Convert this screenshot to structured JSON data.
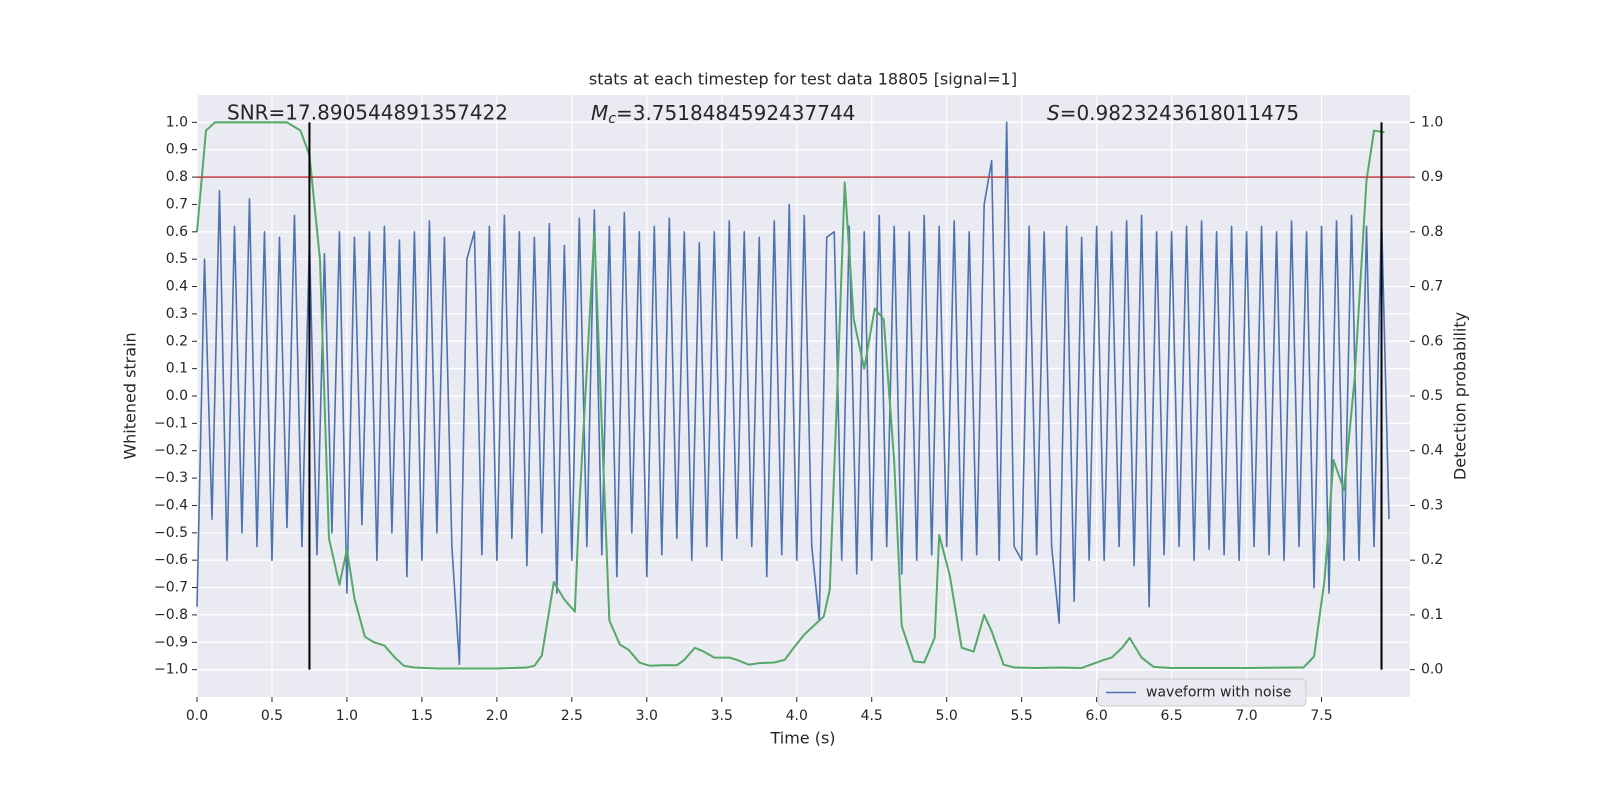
{
  "chart_data": {
    "type": "line",
    "title": "stats at each timestep for test data 18805 [signal=1]",
    "xlabel": "Time (s)",
    "ylabel": "Whitened strain",
    "y2label": "Detection probability",
    "annotations": [
      {
        "text": "SNR=17.890544891357422"
      },
      {
        "symbol": "M",
        "subscript": "c",
        "text": "=3.7518484592437744"
      },
      {
        "symbol": "S",
        "text": "=0.9823243618011475"
      }
    ],
    "xlim": [
      0,
      8.09
    ],
    "ylim": [
      -1.1,
      1.1
    ],
    "y2lim": [
      -0.05,
      1.05
    ],
    "xticks": [
      {
        "value": 0,
        "label": "0.0"
      },
      0.5,
      {
        "value": 1,
        "label": "1.0"
      },
      1.5,
      {
        "value": 2,
        "label": "2.0"
      },
      2.5,
      {
        "value": 3,
        "label": "3.0"
      },
      3.5,
      {
        "value": 4,
        "label": "4.0"
      },
      4.5,
      {
        "value": 5,
        "label": "5.0"
      },
      5.5,
      {
        "value": 6,
        "label": "6.0"
      },
      6.5,
      {
        "value": 7,
        "label": "7.0"
      },
      7.5
    ],
    "yticks": [
      {
        "value": -1,
        "label": "−1.0"
      },
      {
        "value": -0.9,
        "label": "−0.9"
      },
      {
        "value": -0.8,
        "label": "−0.8"
      },
      {
        "value": -0.7,
        "label": "−0.7"
      },
      {
        "value": -0.6,
        "label": "−0.6"
      },
      {
        "value": -0.5,
        "label": "−0.5"
      },
      {
        "value": -0.4,
        "label": "−0.4"
      },
      {
        "value": -0.3,
        "label": "−0.3"
      },
      {
        "value": -0.2,
        "label": "−0.2"
      },
      {
        "value": -0.1,
        "label": "−0.1"
      },
      {
        "value": 0,
        "label": "0.0"
      },
      0.1,
      0.2,
      0.3,
      0.4,
      0.5,
      0.6,
      0.7,
      0.8,
      0.9,
      {
        "value": 1,
        "label": "1.0"
      }
    ],
    "y2ticks": [
      {
        "value": 0,
        "label": "0.0"
      },
      0.1,
      0.2,
      0.3,
      0.4,
      0.5,
      0.6,
      0.7,
      0.8,
      0.9,
      {
        "value": 1,
        "label": "1.0"
      }
    ],
    "grid": true,
    "legend": "lower right",
    "hlines": [
      {
        "value": 0.8,
        "color": "#c03d3e"
      }
    ],
    "vlines": [
      {
        "value": 0.75,
        "color": "#000000"
      },
      {
        "value": 7.9,
        "color": "#000000"
      }
    ],
    "vline_range": [
      -1,
      1
    ],
    "series": [
      {
        "name": "waveform with noise",
        "color": "#4c72b0",
        "x": [
          0,
          0.05,
          0.1,
          0.15,
          0.2,
          0.25,
          0.3,
          0.35,
          0.4,
          0.45,
          0.5,
          0.55,
          0.6,
          0.65,
          0.7,
          0.75,
          0.8,
          0.85,
          0.9,
          0.95,
          1,
          1.05,
          1.1,
          1.15,
          1.2,
          1.25,
          1.3,
          1.35,
          1.4,
          1.45,
          1.5,
          1.55,
          1.6,
          1.65,
          1.7,
          1.75,
          1.8,
          1.85,
          1.9,
          1.95,
          2,
          2.05,
          2.1,
          2.15,
          2.2,
          2.25,
          2.3,
          2.35,
          2.4,
          2.45,
          2.5,
          2.55,
          2.6,
          2.65,
          2.7,
          2.75,
          2.8,
          2.85,
          2.9,
          2.95,
          3,
          3.05,
          3.1,
          3.15,
          3.2,
          3.25,
          3.3,
          3.35,
          3.4,
          3.45,
          3.5,
          3.55,
          3.6,
          3.65,
          3.7,
          3.75,
          3.8,
          3.85,
          3.9,
          3.95,
          4,
          4.05,
          4.1,
          4.15,
          4.2,
          4.25,
          4.3,
          4.35,
          4.4,
          4.45,
          4.5,
          4.55,
          4.6,
          4.65,
          4.7,
          4.75,
          4.8,
          4.85,
          4.9,
          4.95,
          5,
          5.05,
          5.1,
          5.15,
          5.2,
          5.25,
          5.3,
          5.35,
          5.4,
          5.45,
          5.5,
          5.55,
          5.6,
          5.65,
          5.7,
          5.75,
          5.8,
          5.85,
          5.9,
          5.95,
          6,
          6.05,
          6.1,
          6.15,
          6.2,
          6.25,
          6.3,
          6.35,
          6.4,
          6.45,
          6.5,
          6.55,
          6.6,
          6.65,
          6.7,
          6.75,
          6.8,
          6.85,
          6.9,
          6.95,
          7,
          7.05,
          7.1,
          7.15,
          7.2,
          7.25,
          7.3,
          7.35,
          7.4,
          7.45,
          7.5,
          7.55,
          7.6,
          7.65,
          7.7,
          7.75,
          7.8,
          7.85,
          7.9,
          7.95
        ],
        "values": [
          -0.77,
          0.5,
          -0.45,
          0.75,
          -0.6,
          0.62,
          -0.5,
          0.72,
          -0.55,
          0.6,
          -0.6,
          0.58,
          -0.48,
          0.66,
          -0.55,
          0.57,
          -0.58,
          0.52,
          -0.5,
          0.6,
          -0.72,
          0.58,
          -0.47,
          0.6,
          -0.6,
          0.62,
          -0.5,
          0.57,
          -0.66,
          0.6,
          -0.6,
          0.64,
          -0.5,
          0.58,
          -0.55,
          -0.98,
          0.5,
          0.6,
          -0.58,
          0.62,
          -0.6,
          0.66,
          -0.52,
          0.6,
          -0.62,
          0.58,
          -0.5,
          0.63,
          -0.72,
          0.55,
          -0.6,
          0.65,
          -0.55,
          0.68,
          -0.58,
          0.62,
          -0.66,
          0.67,
          -0.5,
          0.6,
          -0.66,
          0.62,
          -0.58,
          0.65,
          -0.52,
          0.6,
          -0.6,
          0.56,
          -0.55,
          0.6,
          -0.6,
          0.64,
          -0.52,
          0.6,
          -0.55,
          0.58,
          -0.66,
          0.64,
          -0.58,
          0.7,
          -0.6,
          0.66,
          -0.55,
          -0.82,
          0.58,
          0.6,
          -0.6,
          0.62,
          -0.65,
          0.6,
          -0.6,
          0.66,
          -0.55,
          0.62,
          -0.65,
          0.6,
          -0.6,
          0.66,
          -0.58,
          0.62,
          -0.55,
          0.64,
          -0.6,
          0.6,
          -0.58,
          0.7,
          0.86,
          -0.6,
          1.0,
          -0.55,
          -0.6,
          0.62,
          -0.58,
          0.6,
          -0.55,
          -0.83,
          0.62,
          -0.75,
          0.58,
          -0.6,
          0.62,
          -0.6,
          0.6,
          -0.55,
          0.64,
          -0.62,
          0.66,
          -0.77,
          0.6,
          -0.58,
          0.6,
          -0.55,
          0.62,
          -0.6,
          0.64,
          -0.56,
          0.6,
          -0.58,
          0.62,
          -0.6,
          0.6,
          -0.55,
          0.62,
          -0.58,
          0.6,
          -0.6,
          0.64,
          -0.55,
          0.6,
          -0.7,
          0.62,
          -0.72,
          0.64,
          -0.6,
          0.66,
          -0.6,
          0.62,
          -0.55,
          0.66,
          -0.45
        ]
      },
      {
        "color": "#55a868",
        "axis": "y2",
        "x": [
          0,
          0.06,
          0.12,
          0.3,
          0.45,
          0.6,
          0.69,
          0.75,
          0.82,
          0.88,
          0.95,
          1.0,
          1.05,
          1.12,
          1.18,
          1.25,
          1.32,
          1.38,
          1.45,
          1.6,
          1.8,
          2.0,
          2.2,
          2.25,
          2.3,
          2.38,
          2.45,
          2.52,
          2.55,
          2.65,
          2.75,
          2.82,
          2.88,
          2.95,
          3.02,
          3.1,
          3.2,
          3.25,
          3.32,
          3.38,
          3.45,
          3.55,
          3.6,
          3.68,
          3.75,
          3.85,
          3.92,
          3.98,
          4.05,
          4.12,
          4.18,
          4.22,
          4.28,
          4.32,
          4.38,
          4.45,
          4.52,
          4.58,
          4.65,
          4.7,
          4.78,
          4.85,
          4.92,
          4.95,
          5.02,
          5.1,
          5.18,
          5.25,
          5.3,
          5.38,
          5.45,
          5.6,
          5.75,
          5.9,
          6.05,
          6.1,
          6.17,
          6.22,
          6.3,
          6.38,
          6.5,
          7.0,
          7.3,
          7.38,
          7.45,
          7.52,
          7.58,
          7.65,
          7.72,
          7.8,
          7.85,
          7.92
        ],
        "values": [
          0.8,
          0.985,
          1,
          1,
          1,
          1,
          0.985,
          0.94,
          0.75,
          0.24,
          0.155,
          0.22,
          0.13,
          0.06,
          0.05,
          0.044,
          0.022,
          0.007,
          0.004,
          0.002,
          0.002,
          0.002,
          0.004,
          0.007,
          0.026,
          0.16,
          0.128,
          0.106,
          0.3,
          0.8,
          0.09,
          0.046,
          0.036,
          0.013,
          0.007,
          0.008,
          0.008,
          0.018,
          0.04,
          0.033,
          0.022,
          0.022,
          0.018,
          0.009,
          0.012,
          0.013,
          0.018,
          0.04,
          0.064,
          0.082,
          0.097,
          0.146,
          0.584,
          0.89,
          0.64,
          0.55,
          0.66,
          0.64,
          0.38,
          0.08,
          0.015,
          0.013,
          0.058,
          0.246,
          0.173,
          0.04,
          0.033,
          0.1,
          0.07,
          0.009,
          0.004,
          0.003,
          0.004,
          0.003,
          0.018,
          0.022,
          0.04,
          0.058,
          0.022,
          0.005,
          0.003,
          0.003,
          0.004,
          0.004,
          0.024,
          0.164,
          0.383,
          0.328,
          0.53,
          0.894,
          0.985,
          0.982
        ]
      }
    ]
  }
}
